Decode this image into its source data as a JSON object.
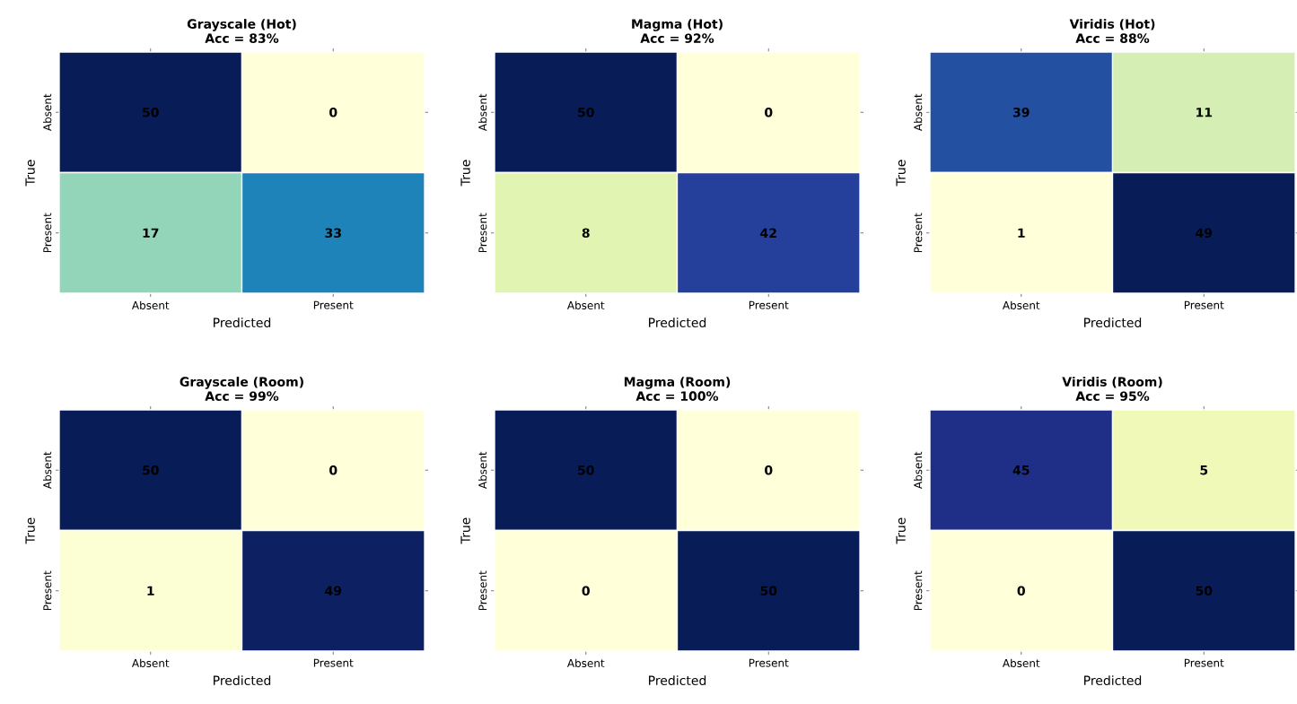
{
  "chart_data": [
    {
      "type": "heatmap",
      "title": "Grayscale (Hot)",
      "subtitle": "Acc = 83%",
      "xlabel": "Predicted",
      "ylabel": "True",
      "categories": [
        "Absent",
        "Present"
      ],
      "y_categories": [
        "Absent",
        "Present"
      ],
      "cells": [
        [
          50,
          0
        ],
        [
          17,
          33
        ]
      ],
      "data_labels": true
    },
    {
      "type": "heatmap",
      "title": "Magma (Hot)",
      "subtitle": "Acc = 92%",
      "xlabel": "Predicted",
      "ylabel": "True",
      "categories": [
        "Absent",
        "Present"
      ],
      "y_categories": [
        "Absent",
        "Present"
      ],
      "cells": [
        [
          50,
          0
        ],
        [
          8,
          42
        ]
      ],
      "data_labels": true
    },
    {
      "type": "heatmap",
      "title": "Viridis (Hot)",
      "subtitle": "Acc = 88%",
      "xlabel": "Predicted",
      "ylabel": "True",
      "categories": [
        "Absent",
        "Present"
      ],
      "y_categories": [
        "Absent",
        "Present"
      ],
      "cells": [
        [
          39,
          11
        ],
        [
          1,
          49
        ]
      ],
      "data_labels": true
    },
    {
      "type": "heatmap",
      "title": "Grayscale (Room)",
      "subtitle": "Acc = 99%",
      "xlabel": "Predicted",
      "ylabel": "True",
      "categories": [
        "Absent",
        "Present"
      ],
      "y_categories": [
        "Absent",
        "Present"
      ],
      "cells": [
        [
          50,
          0
        ],
        [
          1,
          49
        ]
      ],
      "data_labels": true
    },
    {
      "type": "heatmap",
      "title": "Magma (Room)",
      "subtitle": "Acc = 100%",
      "xlabel": "Predicted",
      "ylabel": "True",
      "categories": [
        "Absent",
        "Present"
      ],
      "y_categories": [
        "Absent",
        "Present"
      ],
      "cells": [
        [
          50,
          0
        ],
        [
          0,
          50
        ]
      ],
      "data_labels": true
    },
    {
      "type": "heatmap",
      "title": "Viridis (Room)",
      "subtitle": "Acc = 95%",
      "xlabel": "Predicted",
      "ylabel": "True",
      "categories": [
        "Absent",
        "Present"
      ],
      "y_categories": [
        "Absent",
        "Present"
      ],
      "cells": [
        [
          45,
          5
        ],
        [
          0,
          50
        ]
      ],
      "data_labels": true
    }
  ]
}
